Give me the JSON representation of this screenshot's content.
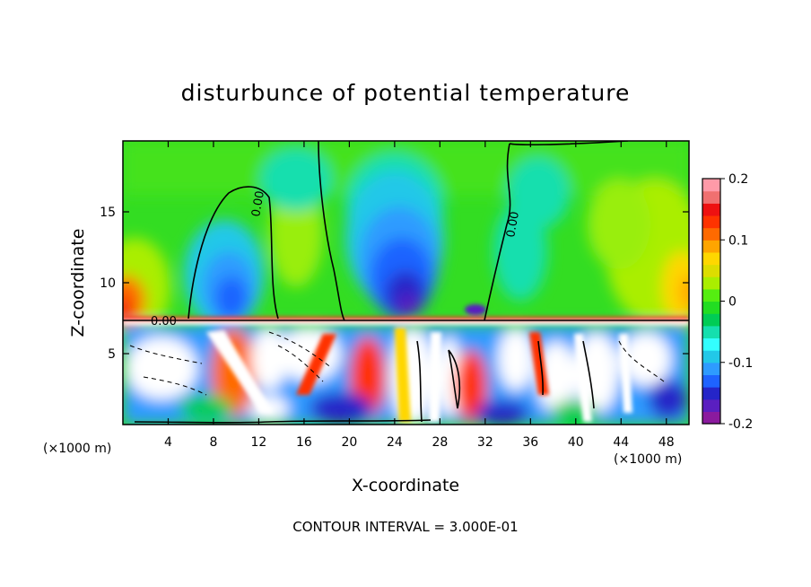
{
  "chart_data": {
    "type": "heatmap",
    "title": "disturbunce of potential temperature",
    "xlabel": "X-coordinate",
    "ylabel": "Z-coordinate",
    "x_unit": "(×1000 m)",
    "x_unit_right": "(×1000 m)",
    "x_ticks": [
      "4",
      "8",
      "12",
      "16",
      "20",
      "24",
      "28",
      "32",
      "36",
      "40",
      "44",
      "48"
    ],
    "y_ticks": [
      "5",
      "10",
      "15"
    ],
    "xlim": [
      0,
      50
    ],
    "ylim": [
      0,
      20
    ],
    "colorbar": {
      "ticks": [
        "0.2",
        "0.1",
        "0",
        "-0.1",
        "-0.2"
      ],
      "range": [
        -0.2,
        0.2
      ],
      "colors": [
        "#8b1a9e",
        "#5a1fc0",
        "#2525c8",
        "#1e63ff",
        "#2e9bff",
        "#22c8e8",
        "#33ffff",
        "#15dfae",
        "#00cc55",
        "#22dd22",
        "#55ee11",
        "#aaee00",
        "#dddd00",
        "#ffd700",
        "#ffa500",
        "#ff6a00",
        "#ff3300",
        "#ee1111",
        "#f07070",
        "#ff9aa8"
      ]
    },
    "contour_label": "0.00",
    "contour_interval_text": "CONTOUR INTERVAL = 3.000E-01"
  }
}
